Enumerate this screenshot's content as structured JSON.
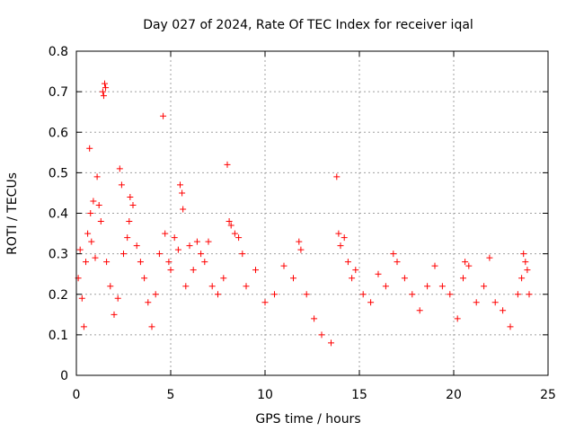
{
  "chart_data": {
    "type": "scatter",
    "title": "Day 027 of 2024, Rate Of TEC Index for receiver iqal",
    "xlabel": "GPS time / hours",
    "ylabel": "ROTI / TECUs",
    "xlim": [
      0,
      25
    ],
    "ylim": [
      0,
      0.8
    ],
    "xticks": [
      0,
      5,
      10,
      15,
      20,
      25
    ],
    "yticks": [
      0,
      0.1,
      0.2,
      0.3,
      0.4,
      0.5,
      0.6,
      0.7,
      0.8
    ],
    "xtick_labels": [
      "0",
      "5",
      "10",
      "15",
      "20",
      "25"
    ],
    "ytick_labels": [
      "0",
      "0.1",
      "0.2",
      "0.3",
      "0.4",
      "0.5",
      "0.6",
      "0.7",
      "0.8"
    ],
    "grid": true,
    "marker": "+",
    "color": "#ff0000",
    "series": [
      {
        "name": "ROTI",
        "points": [
          [
            0.1,
            0.24
          ],
          [
            0.2,
            0.31
          ],
          [
            0.3,
            0.19
          ],
          [
            0.4,
            0.12
          ],
          [
            0.5,
            0.28
          ],
          [
            0.6,
            0.35
          ],
          [
            0.7,
            0.56
          ],
          [
            0.75,
            0.4
          ],
          [
            0.8,
            0.33
          ],
          [
            0.9,
            0.43
          ],
          [
            1.0,
            0.29
          ],
          [
            1.1,
            0.49
          ],
          [
            1.2,
            0.42
          ],
          [
            1.3,
            0.38
          ],
          [
            1.4,
            0.7
          ],
          [
            1.45,
            0.69
          ],
          [
            1.5,
            0.72
          ],
          [
            1.55,
            0.71
          ],
          [
            1.6,
            0.28
          ],
          [
            1.8,
            0.22
          ],
          [
            2.0,
            0.15
          ],
          [
            2.2,
            0.19
          ],
          [
            2.3,
            0.51
          ],
          [
            2.4,
            0.47
          ],
          [
            2.5,
            0.3
          ],
          [
            2.7,
            0.34
          ],
          [
            2.8,
            0.38
          ],
          [
            2.85,
            0.44
          ],
          [
            3.0,
            0.42
          ],
          [
            3.2,
            0.32
          ],
          [
            3.4,
            0.28
          ],
          [
            3.6,
            0.24
          ],
          [
            3.8,
            0.18
          ],
          [
            4.0,
            0.12
          ],
          [
            4.2,
            0.2
          ],
          [
            4.4,
            0.3
          ],
          [
            4.6,
            0.64
          ],
          [
            4.7,
            0.35
          ],
          [
            4.9,
            0.28
          ],
          [
            5.0,
            0.26
          ],
          [
            5.2,
            0.34
          ],
          [
            5.4,
            0.31
          ],
          [
            5.5,
            0.47
          ],
          [
            5.6,
            0.45
          ],
          [
            5.65,
            0.41
          ],
          [
            5.8,
            0.22
          ],
          [
            6.0,
            0.32
          ],
          [
            6.2,
            0.26
          ],
          [
            6.4,
            0.33
          ],
          [
            6.6,
            0.3
          ],
          [
            6.8,
            0.28
          ],
          [
            7.0,
            0.33
          ],
          [
            7.2,
            0.22
          ],
          [
            7.5,
            0.2
          ],
          [
            7.8,
            0.24
          ],
          [
            8.0,
            0.52
          ],
          [
            8.1,
            0.38
          ],
          [
            8.2,
            0.37
          ],
          [
            8.4,
            0.35
          ],
          [
            8.6,
            0.34
          ],
          [
            8.8,
            0.3
          ],
          [
            9.0,
            0.22
          ],
          [
            9.5,
            0.26
          ],
          [
            10.0,
            0.18
          ],
          [
            10.5,
            0.2
          ],
          [
            11.0,
            0.27
          ],
          [
            11.5,
            0.24
          ],
          [
            11.8,
            0.33
          ],
          [
            11.9,
            0.31
          ],
          [
            12.2,
            0.2
          ],
          [
            12.6,
            0.14
          ],
          [
            13.0,
            0.1
          ],
          [
            13.5,
            0.08
          ],
          [
            13.8,
            0.49
          ],
          [
            13.9,
            0.35
          ],
          [
            14.0,
            0.32
          ],
          [
            14.2,
            0.34
          ],
          [
            14.4,
            0.28
          ],
          [
            14.6,
            0.24
          ],
          [
            14.8,
            0.26
          ],
          [
            15.2,
            0.2
          ],
          [
            15.6,
            0.18
          ],
          [
            16.0,
            0.25
          ],
          [
            16.4,
            0.22
          ],
          [
            16.8,
            0.3
          ],
          [
            17.0,
            0.28
          ],
          [
            17.4,
            0.24
          ],
          [
            17.8,
            0.2
          ],
          [
            18.2,
            0.16
          ],
          [
            18.6,
            0.22
          ],
          [
            19.0,
            0.27
          ],
          [
            19.4,
            0.22
          ],
          [
            19.8,
            0.2
          ],
          [
            20.2,
            0.14
          ],
          [
            20.5,
            0.24
          ],
          [
            20.6,
            0.28
          ],
          [
            20.8,
            0.27
          ],
          [
            21.2,
            0.18
          ],
          [
            21.6,
            0.22
          ],
          [
            21.9,
            0.29
          ],
          [
            22.2,
            0.18
          ],
          [
            22.6,
            0.16
          ],
          [
            23.0,
            0.12
          ],
          [
            23.4,
            0.2
          ],
          [
            23.6,
            0.24
          ],
          [
            23.7,
            0.3
          ],
          [
            23.8,
            0.28
          ],
          [
            23.9,
            0.26
          ],
          [
            24.0,
            0.2
          ]
        ]
      }
    ]
  }
}
